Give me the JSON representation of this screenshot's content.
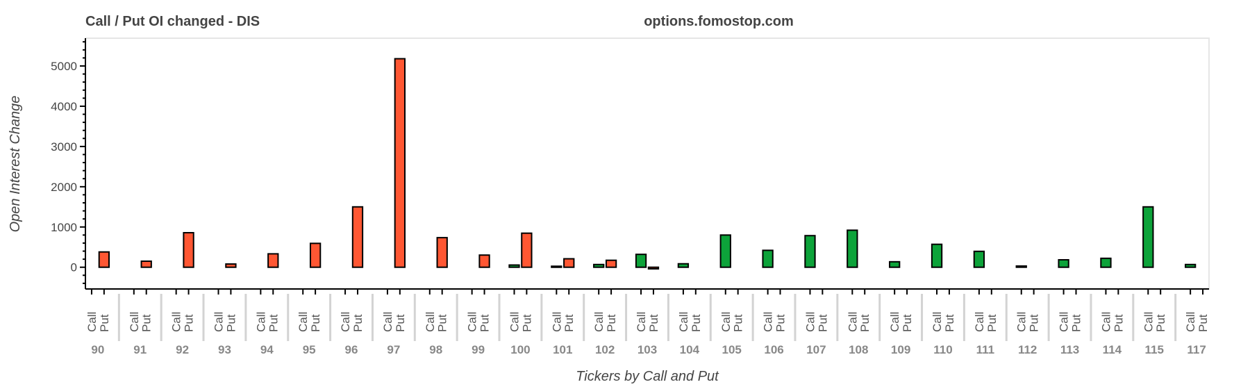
{
  "chart_data": {
    "type": "bar",
    "title": "Call / Put OI changed - DIS",
    "subtitle": "options.fomostop.com",
    "xlabel": "Tickers by Call and Put",
    "ylabel": "Open Interest Change",
    "ylim": [
      -540,
      5690
    ],
    "yticks": [
      0,
      1000,
      2000,
      3000,
      4000,
      5000
    ],
    "grid": false,
    "factors": [
      "Call",
      "Put"
    ],
    "categories": [
      "90",
      "91",
      "92",
      "93",
      "94",
      "95",
      "96",
      "97",
      "98",
      "99",
      "100",
      "101",
      "102",
      "103",
      "104",
      "105",
      "106",
      "107",
      "108",
      "109",
      "110",
      "111",
      "112",
      "113",
      "114",
      "115",
      "117"
    ],
    "series": [
      {
        "name": "Call",
        "color": "#0da33a",
        "values": [
          0,
          0,
          0,
          0,
          0,
          0,
          0,
          0,
          0,
          0,
          55,
          25,
          68,
          320,
          86,
          800,
          420,
          785,
          920,
          136,
          570,
          395,
          30,
          185,
          222,
          1500,
          68
        ]
      },
      {
        "name": "Put",
        "color": "#ff5733",
        "values": [
          380,
          150,
          858,
          80,
          333,
          593,
          1500,
          5180,
          735,
          302,
          846,
          210,
          173,
          -40,
          0,
          0,
          0,
          0,
          0,
          0,
          0,
          0,
          0,
          0,
          0,
          0,
          0
        ]
      }
    ]
  }
}
